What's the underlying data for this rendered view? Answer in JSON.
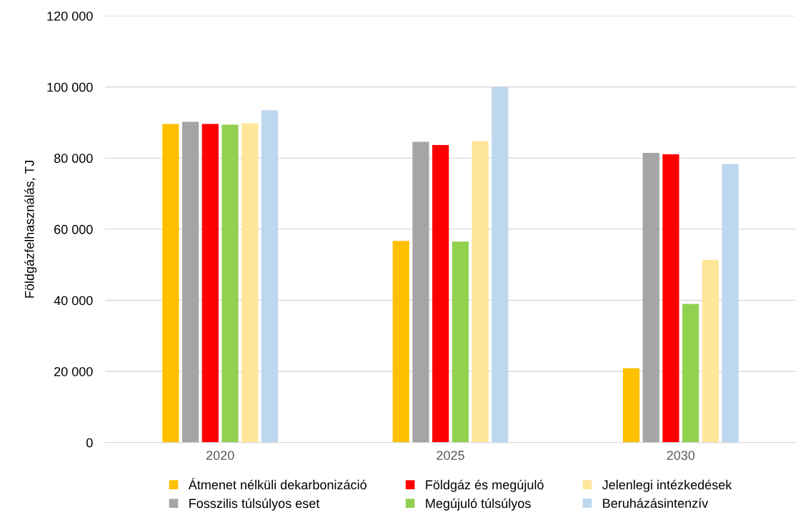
{
  "chart_data": {
    "type": "bar",
    "ylabel": "Földgázfelhasználás, TJ",
    "categories": [
      "2020",
      "2025",
      "2030"
    ],
    "series": [
      {
        "name": "Átmenet nélküli dekarbonizáció",
        "color": "#ffc000",
        "values": [
          89600,
          56700,
          20900
        ]
      },
      {
        "name": "Fosszilis túlsúlyos eset",
        "color": "#a5a5a5",
        "values": [
          90200,
          84600,
          81500
        ]
      },
      {
        "name": "Földgáz és megújuló",
        "color": "#ff0000",
        "values": [
          89600,
          83700,
          81100
        ]
      },
      {
        "name": "Megújuló túlsúlyos",
        "color": "#92d050",
        "values": [
          89400,
          56500,
          39000
        ]
      },
      {
        "name": "Jelenlegi intézkedések",
        "color": "#ffe699",
        "values": [
          89800,
          84800,
          51400
        ]
      },
      {
        "name": "Beruházásintenzív",
        "color": "#bdd7ee",
        "values": [
          93500,
          100000,
          78300
        ]
      }
    ],
    "ylim": [
      0,
      120000
    ],
    "yticks": [
      {
        "value": 0,
        "label": "0"
      },
      {
        "value": 20000,
        "label": "20 000"
      },
      {
        "value": 40000,
        "label": "40 000"
      },
      {
        "value": 60000,
        "label": "60 000"
      },
      {
        "value": 80000,
        "label": "80 000"
      },
      {
        "value": 100000,
        "label": "100 000"
      },
      {
        "value": 120000,
        "label": "120 000"
      }
    ],
    "grid": "y",
    "legend": "bottom"
  }
}
